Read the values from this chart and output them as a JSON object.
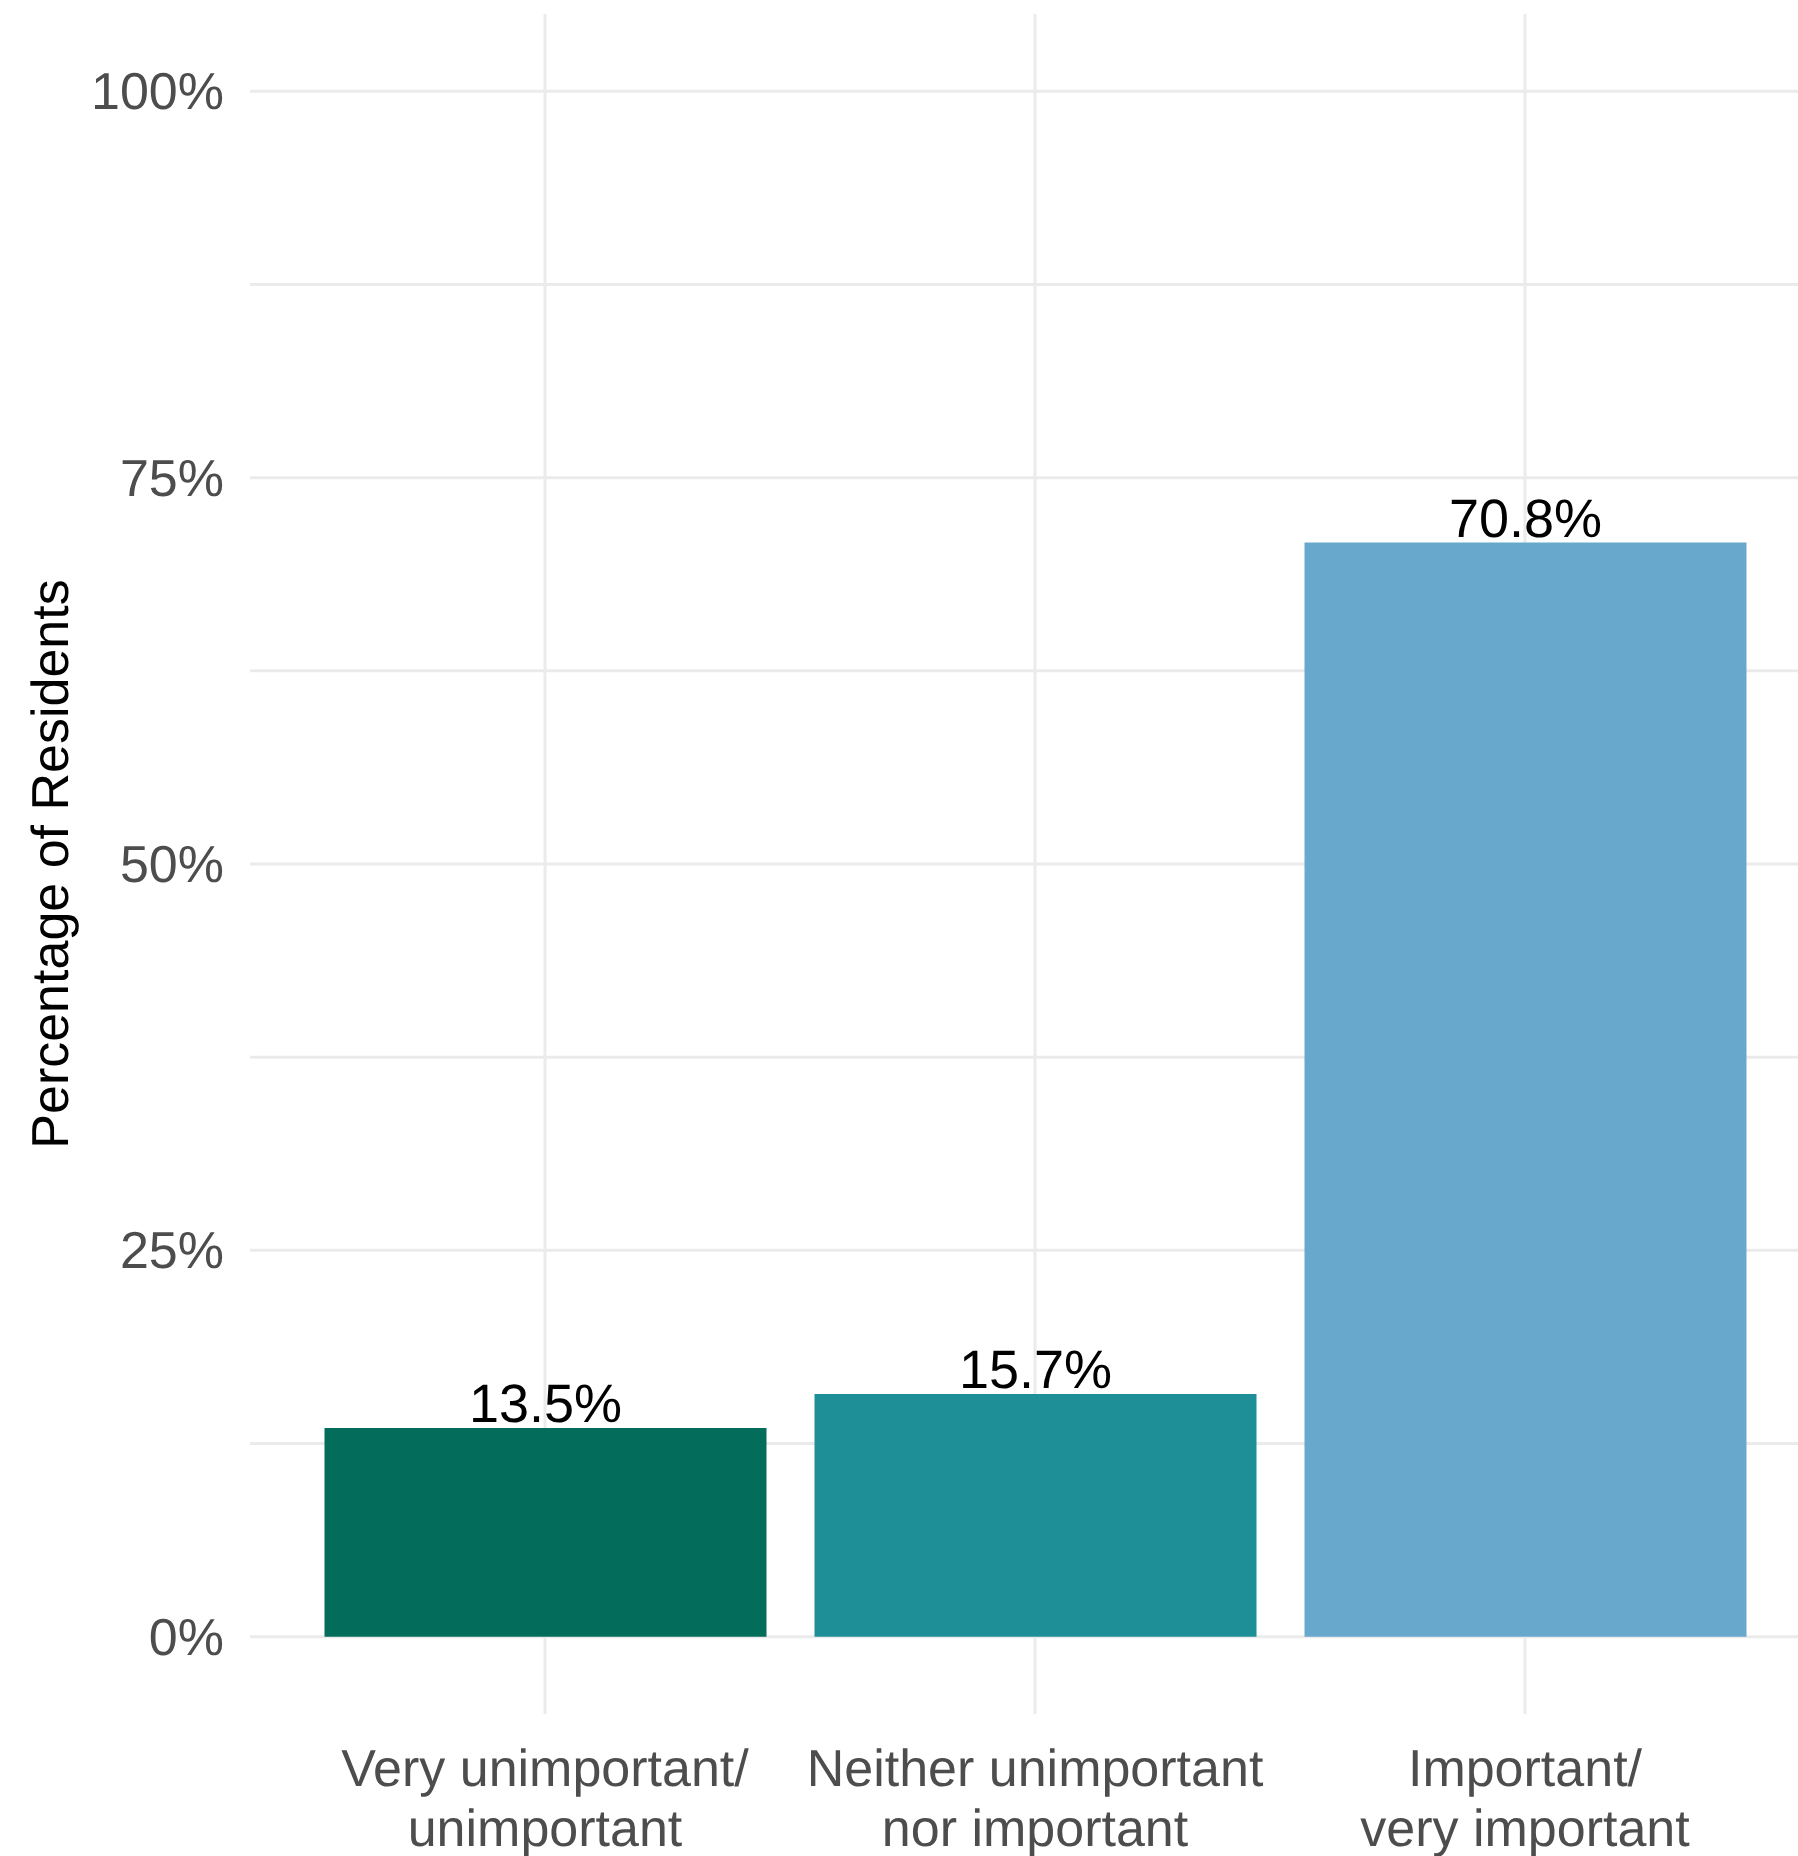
{
  "chart_data": {
    "type": "bar",
    "ylabel": "Percentage of Residents",
    "categories": [
      "Very unimportant/\nunimportant",
      "Neither unimportant\nnor important",
      "Important/\nvery important"
    ],
    "values": [
      13.5,
      15.7,
      70.8
    ],
    "colors": [
      "#036c5a",
      "#1f8f97",
      "#68a8cd"
    ],
    "value_labels": [
      "13.5%",
      "15.7%",
      "70.8%"
    ],
    "ylim": [
      -5,
      105
    ],
    "yticks": [
      {
        "value": 0,
        "label": "0%"
      },
      {
        "value": 12.5,
        "label": null
      },
      {
        "value": 25,
        "label": "25%"
      },
      {
        "value": 37.5,
        "label": null
      },
      {
        "value": 50,
        "label": "50%"
      },
      {
        "value": 62.5,
        "label": null
      },
      {
        "value": 75,
        "label": "75%"
      },
      {
        "value": 87.5,
        "label": null
      },
      {
        "value": 100,
        "label": "100%"
      }
    ],
    "grid": true
  }
}
